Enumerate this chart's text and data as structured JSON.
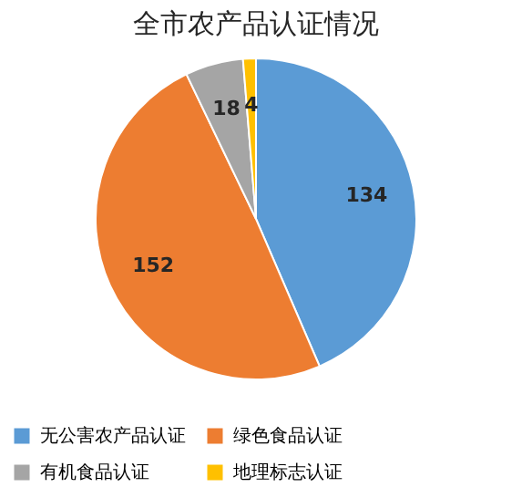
{
  "chart_data": {
    "type": "pie",
    "title": "全市农产品认证情况",
    "categories": [
      "无公害农产品认证",
      "绿色食品认证",
      "有机食品认证",
      "地理标志认证"
    ],
    "values": [
      134,
      152,
      18,
      4
    ],
    "colors": [
      "#5b9bd5",
      "#ed7d31",
      "#a5a5a5",
      "#ffc000"
    ],
    "data_labels": true,
    "legend": "bottom"
  }
}
